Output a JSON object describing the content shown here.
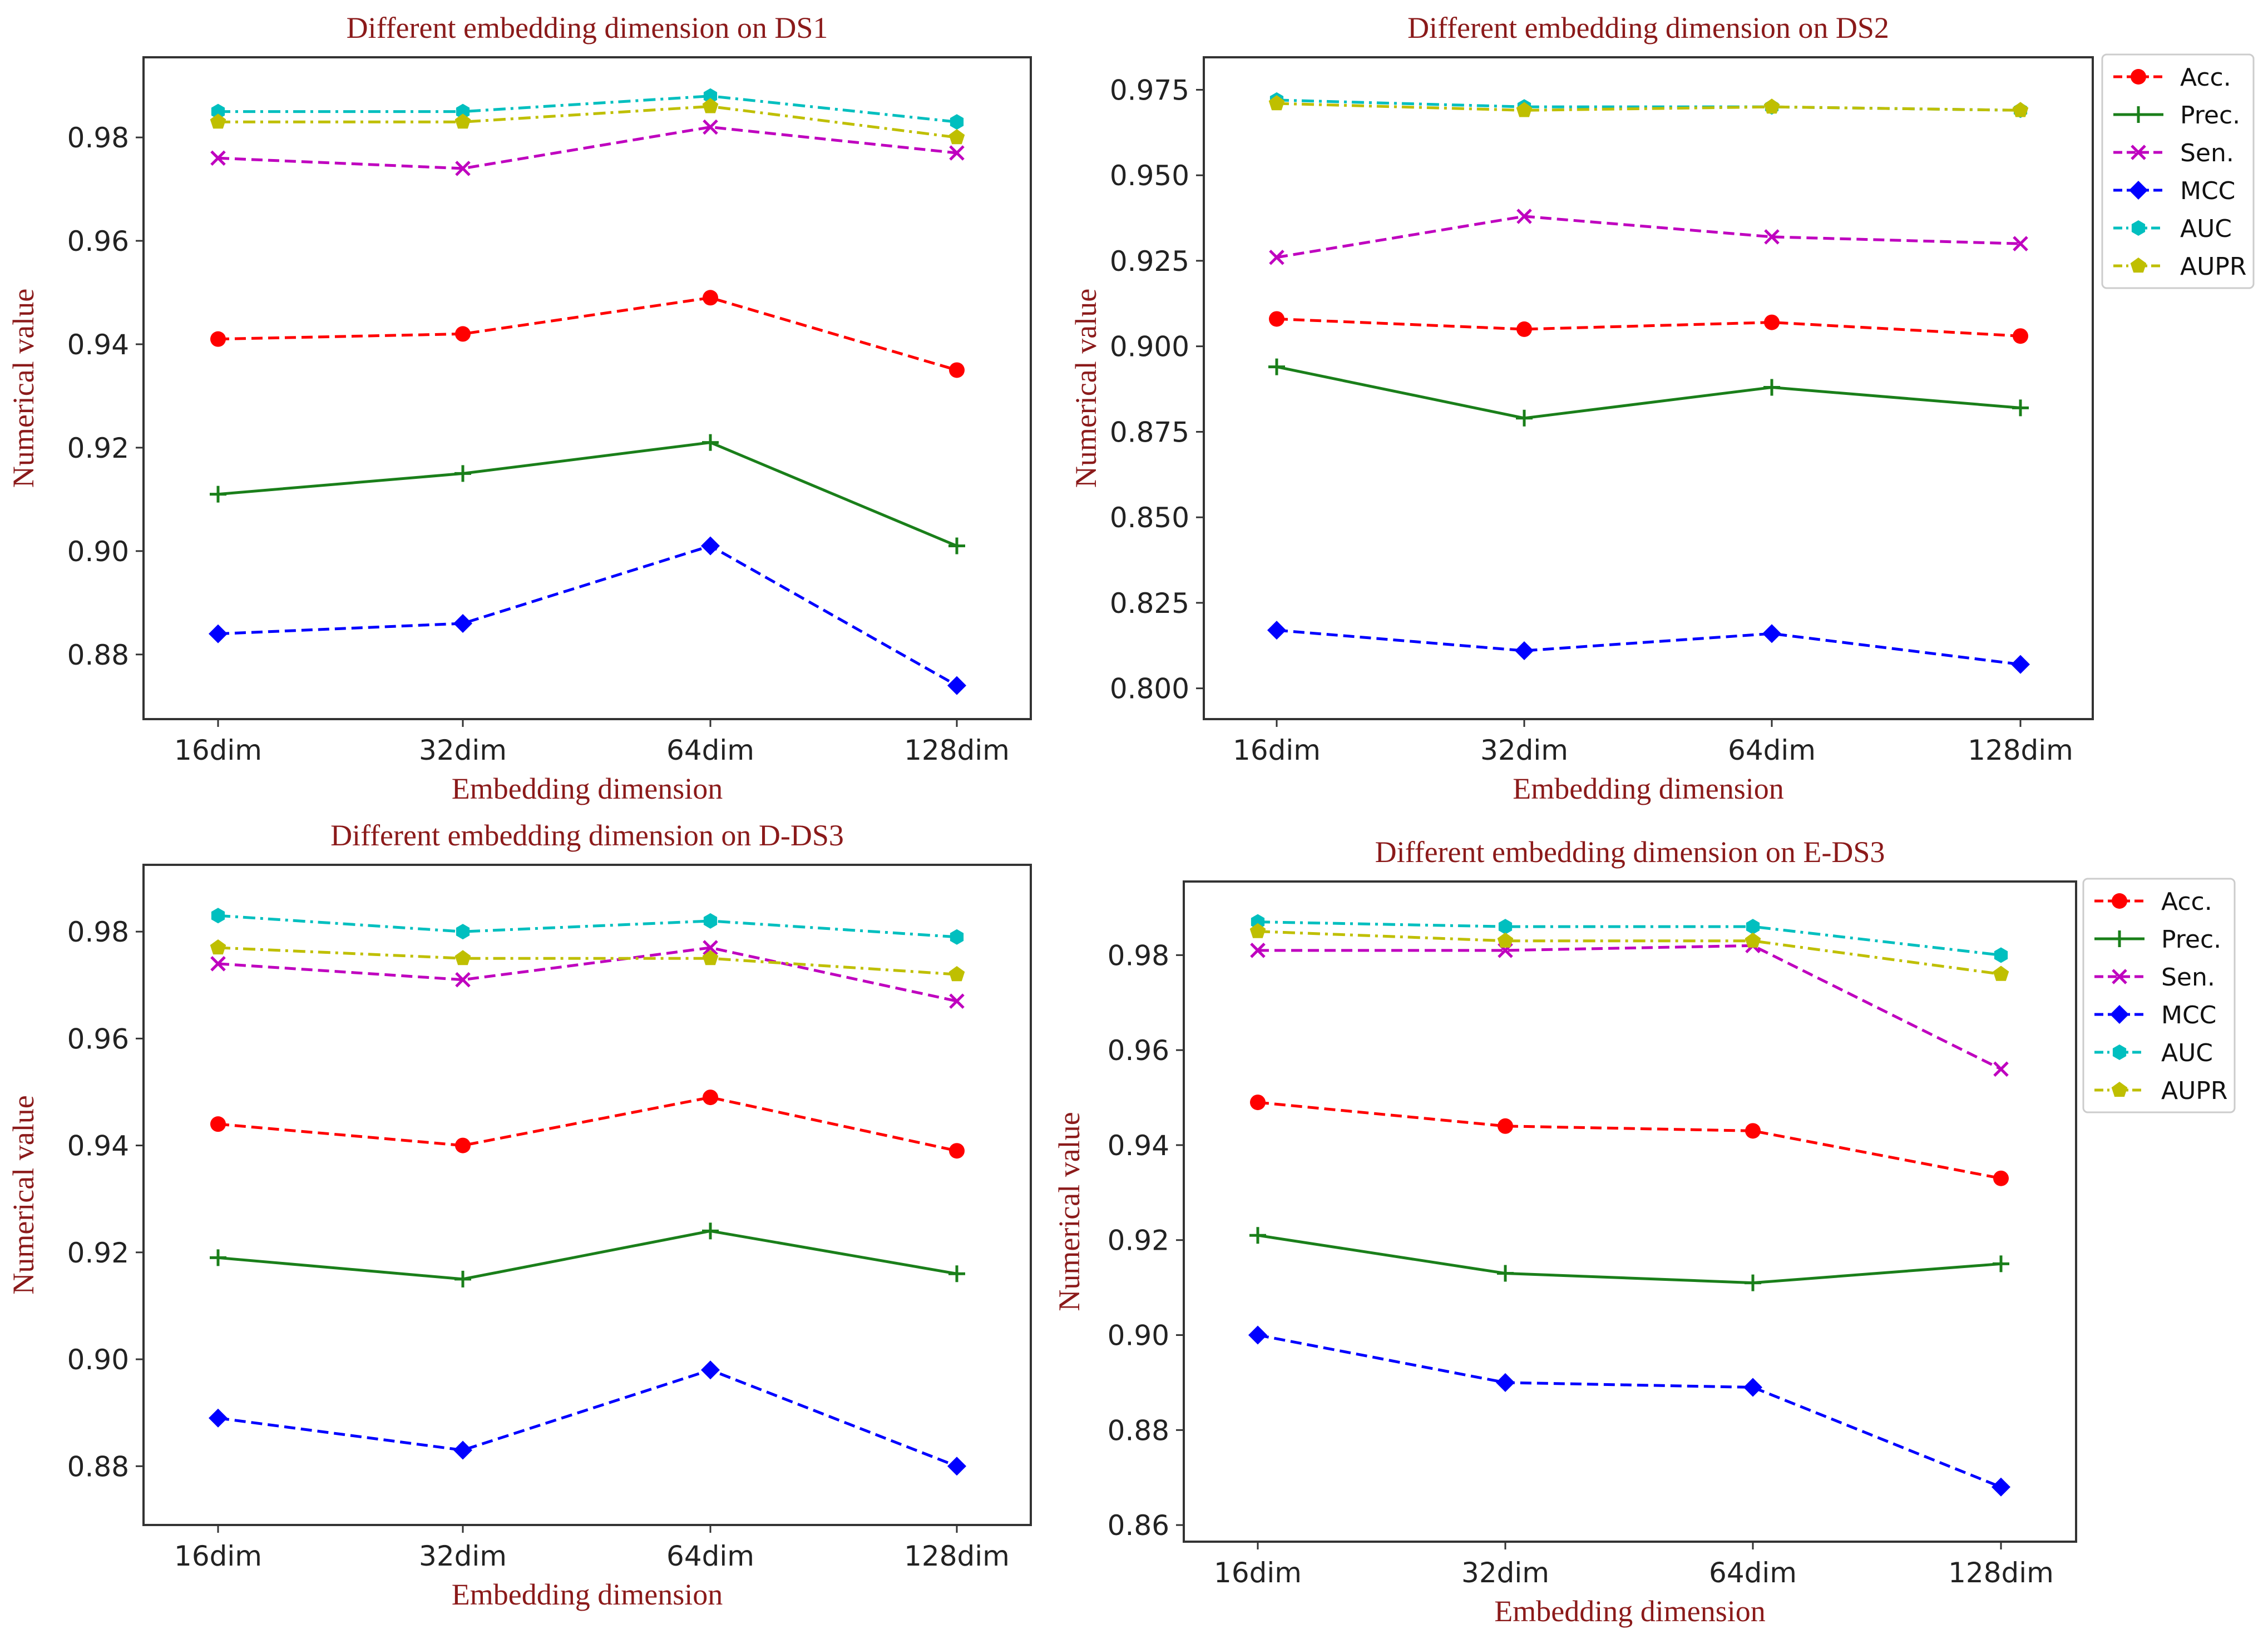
{
  "figure": {
    "colors": {
      "title_text": "#8b1a1a",
      "axis_label_text": "#8b1a1a",
      "frame": "#333333",
      "tick_text": "#222222"
    }
  },
  "series_styles": {
    "Acc.": {
      "color": "#ff0000",
      "line": "dashed",
      "marker": "circle",
      "marker_name": "circle-marker"
    },
    "Prec.": {
      "color": "#1a7f1a",
      "line": "solid",
      "marker": "plus",
      "marker_name": "plus-marker"
    },
    "Sen.": {
      "color": "#bf00bf",
      "line": "dashed",
      "marker": "x",
      "marker_name": "x-marker"
    },
    "MCC": {
      "color": "#0000ff",
      "line": "dashed",
      "marker": "diamond",
      "marker_name": "diamond-marker"
    },
    "AUC": {
      "color": "#00bfbf",
      "line": "dashdot",
      "marker": "hexagon",
      "marker_name": "hexagon-marker"
    },
    "AUPR": {
      "color": "#bfbf00",
      "line": "dashdot",
      "marker": "pentagon",
      "marker_name": "pentagon-marker"
    }
  },
  "chart_data": [
    {
      "type": "line",
      "title": "Different embedding dimension on DS1",
      "xlabel": "Embedding dimension",
      "ylabel": "Numerical value",
      "categories": [
        "16dim",
        "32dim",
        "64dim",
        "128dim"
      ],
      "ylim": [
        0.8675,
        0.9955
      ],
      "yticks": [
        0.88,
        0.9,
        0.92,
        0.94,
        0.96,
        0.98
      ],
      "ytick_labels": [
        "0.88",
        "0.90",
        "0.92",
        "0.94",
        "0.96",
        "0.98"
      ],
      "grid": false,
      "legend": null,
      "series": [
        {
          "name": "Acc.",
          "values": [
            0.941,
            0.942,
            0.949,
            0.935
          ]
        },
        {
          "name": "Prec.",
          "values": [
            0.911,
            0.915,
            0.921,
            0.901
          ]
        },
        {
          "name": "Sen.",
          "values": [
            0.976,
            0.974,
            0.982,
            0.977
          ]
        },
        {
          "name": "MCC",
          "values": [
            0.884,
            0.886,
            0.901,
            0.874
          ]
        },
        {
          "name": "AUC",
          "values": [
            0.985,
            0.985,
            0.988,
            0.983
          ]
        },
        {
          "name": "AUPR",
          "values": [
            0.983,
            0.983,
            0.986,
            0.98
          ]
        }
      ]
    },
    {
      "type": "line",
      "title": "Different embedding dimension on DS2",
      "xlabel": "Embedding dimension",
      "ylabel": "Numerical value",
      "categories": [
        "16dim",
        "32dim",
        "64dim",
        "128dim"
      ],
      "ylim": [
        0.791,
        0.9845
      ],
      "yticks": [
        0.8,
        0.825,
        0.85,
        0.875,
        0.9,
        0.925,
        0.95,
        0.975
      ],
      "ytick_labels": [
        "0.800",
        "0.825",
        "0.850",
        "0.875",
        "0.900",
        "0.925",
        "0.950",
        "0.975"
      ],
      "grid": false,
      "legend": {
        "placement": "outside-top-right",
        "labels": [
          "Acc.",
          "Prec.",
          "Sen.",
          "MCC",
          "AUC",
          "AUPR"
        ]
      },
      "series": [
        {
          "name": "Acc.",
          "values": [
            0.908,
            0.905,
            0.907,
            0.903
          ]
        },
        {
          "name": "Prec.",
          "values": [
            0.894,
            0.879,
            0.888,
            0.882
          ]
        },
        {
          "name": "Sen.",
          "values": [
            0.926,
            0.938,
            0.932,
            0.93
          ]
        },
        {
          "name": "MCC",
          "values": [
            0.817,
            0.811,
            0.816,
            0.807
          ]
        },
        {
          "name": "AUC",
          "values": [
            0.972,
            0.97,
            0.97,
            0.969
          ]
        },
        {
          "name": "AUPR",
          "values": [
            0.971,
            0.969,
            0.97,
            0.969
          ]
        }
      ]
    },
    {
      "type": "line",
      "title": "Different embedding dimension on D-DS3",
      "xlabel": "Embedding dimension",
      "ylabel": "Numerical value",
      "categories": [
        "16dim",
        "32dim",
        "64dim",
        "128dim"
      ],
      "ylim": [
        0.869,
        0.9925
      ],
      "yticks": [
        0.88,
        0.9,
        0.92,
        0.94,
        0.96,
        0.98
      ],
      "ytick_labels": [
        "0.88",
        "0.90",
        "0.92",
        "0.94",
        "0.96",
        "0.98"
      ],
      "grid": false,
      "legend": null,
      "series": [
        {
          "name": "Acc.",
          "values": [
            0.944,
            0.94,
            0.949,
            0.939
          ]
        },
        {
          "name": "Prec.",
          "values": [
            0.919,
            0.915,
            0.924,
            0.916
          ]
        },
        {
          "name": "Sen.",
          "values": [
            0.974,
            0.971,
            0.977,
            0.967
          ]
        },
        {
          "name": "MCC",
          "values": [
            0.889,
            0.883,
            0.898,
            0.88
          ]
        },
        {
          "name": "AUC",
          "values": [
            0.983,
            0.98,
            0.982,
            0.979
          ]
        },
        {
          "name": "AUPR",
          "values": [
            0.977,
            0.975,
            0.975,
            0.972
          ]
        }
      ]
    },
    {
      "type": "line",
      "title": "Different embedding dimension on E-DS3",
      "xlabel": "Embedding dimension",
      "ylabel": "Numerical value",
      "categories": [
        "16dim",
        "32dim",
        "64dim",
        "128dim"
      ],
      "ylim": [
        0.8565,
        0.9955
      ],
      "yticks": [
        0.86,
        0.88,
        0.9,
        0.92,
        0.94,
        0.96,
        0.98
      ],
      "ytick_labels": [
        "0.86",
        "0.88",
        "0.90",
        "0.92",
        "0.94",
        "0.96",
        "0.98"
      ],
      "grid": false,
      "legend": {
        "placement": "outside-top-right",
        "labels": [
          "Acc.",
          "Prec.",
          "Sen.",
          "MCC",
          "AUC",
          "AUPR"
        ]
      },
      "series": [
        {
          "name": "Acc.",
          "values": [
            0.949,
            0.944,
            0.943,
            0.933
          ]
        },
        {
          "name": "Prec.",
          "values": [
            0.921,
            0.913,
            0.911,
            0.915
          ]
        },
        {
          "name": "Sen.",
          "values": [
            0.981,
            0.981,
            0.982,
            0.956
          ]
        },
        {
          "name": "MCC",
          "values": [
            0.9,
            0.89,
            0.889,
            0.868
          ]
        },
        {
          "name": "AUC",
          "values": [
            0.987,
            0.986,
            0.986,
            0.98
          ]
        },
        {
          "name": "AUPR",
          "values": [
            0.985,
            0.983,
            0.983,
            0.976
          ]
        }
      ]
    }
  ]
}
